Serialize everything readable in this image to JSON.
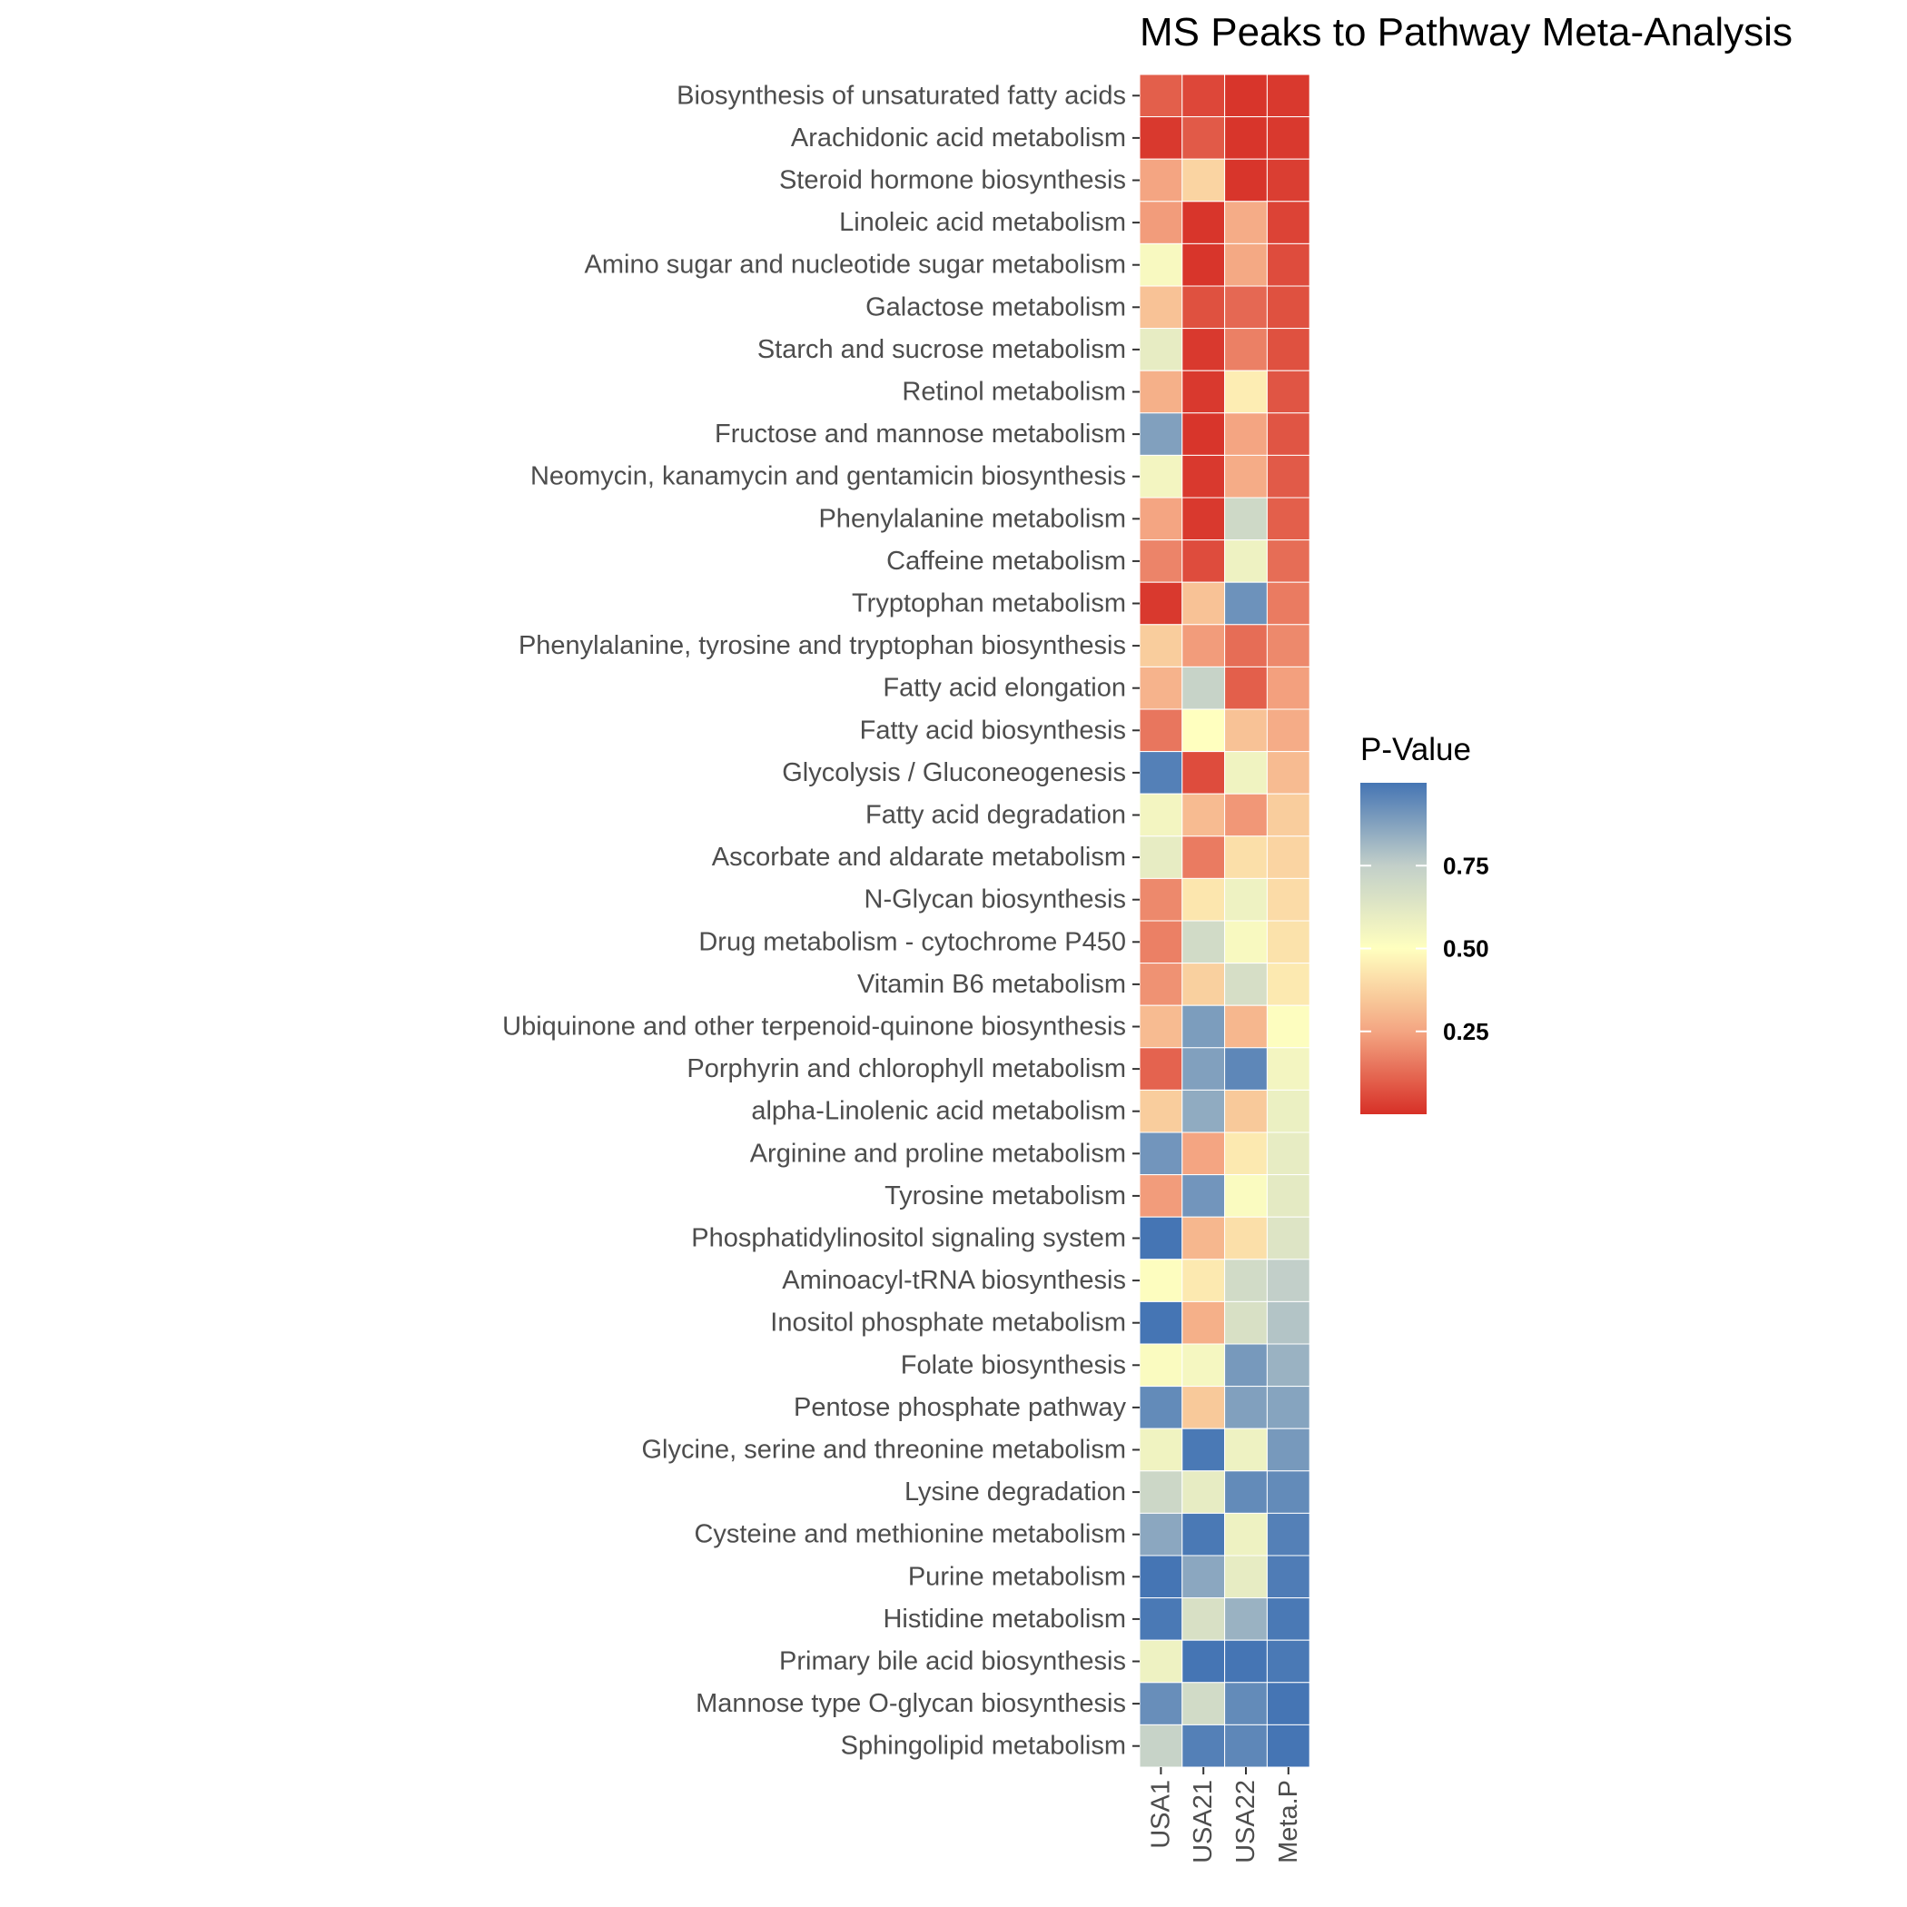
{
  "chart_data": {
    "type": "heatmap",
    "title": "MS Peaks to Pathway Meta-Analysis",
    "xlabel": "",
    "ylabel": "",
    "columns": [
      "USA1",
      "USA21",
      "USA22",
      "Meta.P"
    ],
    "rows": [
      "Biosynthesis of unsaturated fatty acids",
      "Arachidonic acid metabolism",
      "Steroid hormone biosynthesis",
      "Linoleic acid metabolism",
      "Amino sugar and nucleotide sugar metabolism",
      "Galactose metabolism",
      "Starch and sucrose metabolism",
      "Retinol metabolism",
      "Fructose and mannose metabolism",
      "Neomycin, kanamycin and gentamicin biosynthesis",
      "Phenylalanine metabolism",
      "Caffeine metabolism",
      "Tryptophan metabolism",
      "Phenylalanine, tyrosine and tryptophan biosynthesis",
      "Fatty acid elongation",
      "Fatty acid biosynthesis",
      "Glycolysis / Gluconeogenesis",
      "Fatty acid degradation",
      "Ascorbate and aldarate metabolism",
      "N-Glycan biosynthesis",
      "Drug metabolism - cytochrome P450",
      "Vitamin B6 metabolism",
      "Ubiquinone and other terpenoid-quinone biosynthesis",
      "Porphyrin and chlorophyll metabolism",
      "alpha-Linolenic acid metabolism",
      "Arginine and proline metabolism",
      "Tyrosine metabolism",
      "Phosphatidylinositol signaling system",
      "Aminoacyl-tRNA biosynthesis",
      "Inositol phosphate metabolism",
      "Folate biosynthesis",
      "Pentose phosphate pathway",
      "Glycine, serine and threonine metabolism",
      "Lysine degradation",
      "Cysteine and methionine metabolism",
      "Purine metabolism",
      "Histidine metabolism",
      "Primary bile acid biosynthesis",
      "Mannose type O-glycan biosynthesis",
      "Sphingolipid metabolism"
    ],
    "values": [
      [
        0.1,
        0.05,
        0.01,
        0.02
      ],
      [
        0.02,
        0.09,
        0.01,
        0.02
      ],
      [
        0.25,
        0.38,
        0.01,
        0.03
      ],
      [
        0.23,
        0.01,
        0.27,
        0.04
      ],
      [
        0.53,
        0.01,
        0.26,
        0.06
      ],
      [
        0.33,
        0.07,
        0.12,
        0.07
      ],
      [
        0.6,
        0.02,
        0.17,
        0.07
      ],
      [
        0.28,
        0.02,
        0.45,
        0.08
      ],
      [
        0.88,
        0.01,
        0.25,
        0.08
      ],
      [
        0.55,
        0.02,
        0.27,
        0.09
      ],
      [
        0.25,
        0.02,
        0.7,
        0.1
      ],
      [
        0.18,
        0.06,
        0.57,
        0.13
      ],
      [
        0.02,
        0.33,
        0.92,
        0.16
      ],
      [
        0.36,
        0.23,
        0.13,
        0.19
      ],
      [
        0.29,
        0.73,
        0.1,
        0.24
      ],
      [
        0.15,
        0.5,
        0.33,
        0.27
      ],
      [
        0.97,
        0.06,
        0.56,
        0.31
      ],
      [
        0.55,
        0.31,
        0.22,
        0.36
      ],
      [
        0.6,
        0.16,
        0.41,
        0.38
      ],
      [
        0.19,
        0.43,
        0.57,
        0.4
      ],
      [
        0.17,
        0.69,
        0.53,
        0.42
      ],
      [
        0.21,
        0.37,
        0.67,
        0.44
      ],
      [
        0.31,
        0.89,
        0.3,
        0.51
      ],
      [
        0.11,
        0.88,
        0.95,
        0.55
      ],
      [
        0.36,
        0.85,
        0.35,
        0.58
      ],
      [
        0.91,
        0.25,
        0.44,
        0.6
      ],
      [
        0.23,
        0.91,
        0.52,
        0.61
      ],
      [
        1.0,
        0.3,
        0.41,
        0.64
      ],
      [
        0.51,
        0.44,
        0.69,
        0.75
      ],
      [
        1.0,
        0.28,
        0.66,
        0.78
      ],
      [
        0.52,
        0.54,
        0.9,
        0.83
      ],
      [
        0.94,
        0.35,
        0.88,
        0.87
      ],
      [
        0.56,
        0.99,
        0.57,
        0.9
      ],
      [
        0.71,
        0.6,
        0.94,
        0.94
      ],
      [
        0.86,
        0.99,
        0.57,
        0.97
      ],
      [
        1.0,
        0.86,
        0.6,
        0.98
      ],
      [
        0.99,
        0.66,
        0.83,
        0.99
      ],
      [
        0.57,
        1.0,
        1.0,
        0.99
      ],
      [
        0.93,
        0.69,
        0.94,
        1.0
      ],
      [
        0.73,
        0.97,
        0.95,
        1.0
      ]
    ],
    "legend": {
      "title": "P-Value",
      "position": "right",
      "breaks": [
        0.25,
        0.5,
        0.75
      ],
      "break_labels": [
        "0.25",
        "0.50",
        "0.75"
      ],
      "range": [
        0,
        1
      ]
    },
    "colorscale": [
      "#d73027",
      "#fc8d59",
      "#fee090",
      "#ffffbf",
      "#e0f3f8",
      "#91bfdb",
      "#4575b4"
    ],
    "colorscale_stops": [
      {
        "v": 0.0,
        "c": "#d73027"
      },
      {
        "v": 0.25,
        "c": "#f4a582"
      },
      {
        "v": 0.5,
        "c": "#ffffbf"
      },
      {
        "v": 0.75,
        "c": "#c2cfc9"
      },
      {
        "v": 1.0,
        "c": "#4575b4"
      }
    ],
    "grid": false
  }
}
